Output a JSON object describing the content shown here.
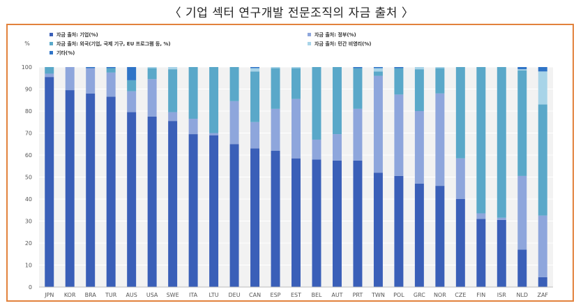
{
  "page_title": "〈 기업 섹터 연구개발 전문조직의 자금 출처 〉",
  "chart_data": {
    "type": "bar",
    "stacked": true,
    "ylabel": "%",
    "ylim": [
      0,
      100
    ],
    "yticks": [
      0,
      10,
      20,
      30,
      40,
      50,
      60,
      70,
      80,
      90,
      100
    ],
    "grid": true,
    "legend_position": "top",
    "categories": [
      "JPN",
      "KOR",
      "BRA",
      "TUR",
      "AUS",
      "USA",
      "SWE",
      "ITA",
      "LTU",
      "DEU",
      "CAN",
      "ESP",
      "EST",
      "BEL",
      "AUT",
      "PRT",
      "TWN",
      "POL",
      "GRC",
      "NOR",
      "CZE",
      "FIN",
      "ISR",
      "NLD",
      "ZAF"
    ],
    "series": [
      {
        "name": "자금 출처: 기업(%)",
        "color": "#3a5fb8",
        "values": [
          95.5,
          89.5,
          88,
          86.5,
          79.5,
          77.5,
          75.5,
          69.5,
          69,
          65,
          63,
          62,
          58.5,
          58,
          57.5,
          57.5,
          52,
          50.5,
          47,
          46,
          40,
          31,
          30.5,
          17,
          4.5
        ]
      },
      {
        "name": "자금 출처: 정부(%)",
        "color": "#8ea6dc",
        "values": [
          1.5,
          10.5,
          11.5,
          11,
          9.5,
          17,
          4,
          7,
          1,
          19.5,
          12,
          19,
          27,
          9,
          12,
          23.5,
          44,
          37,
          33,
          42,
          18.5,
          2.5,
          1,
          33.5,
          28
        ]
      },
      {
        "name": "자금 출처: 외국(기업, 국제 기구, EU 프로그램 등, %)",
        "color": "#5aa8c9",
        "values": [
          3,
          0,
          0,
          2,
          5,
          5,
          19.5,
          23.5,
          30,
          15.5,
          23,
          18.5,
          14,
          33,
          30.5,
          18.5,
          2,
          12,
          19,
          11.5,
          41.5,
          66.5,
          68.5,
          48,
          50.5
        ]
      },
      {
        "name": "자금 출처: 민간 비영리(%)",
        "color": "#a8d4e8",
        "values": [
          0,
          0,
          0,
          0,
          0,
          0.5,
          1,
          0,
          0,
          0,
          1.5,
          0.5,
          0.5,
          0,
          0,
          0,
          1.5,
          0,
          1,
          0.5,
          0,
          0,
          0,
          0.5,
          15
        ]
      },
      {
        "name": "기타(%)",
        "color": "#2f74c7",
        "values": [
          0,
          0,
          0.5,
          0.5,
          6,
          0,
          0,
          0,
          0,
          0,
          0.5,
          0,
          0,
          0,
          0,
          0.5,
          0.5,
          0.5,
          0,
          0,
          0,
          0,
          0,
          1,
          2
        ]
      }
    ]
  }
}
